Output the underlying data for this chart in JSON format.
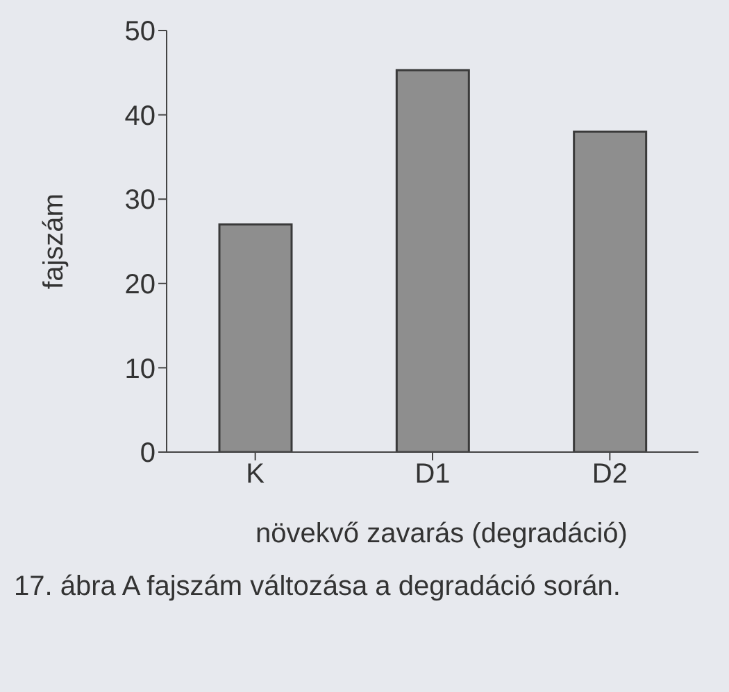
{
  "chart_data": {
    "type": "bar",
    "categories": [
      "K",
      "D1",
      "D2"
    ],
    "values": [
      27,
      45.3,
      38
    ],
    "color": "#8e8e8e",
    "xlabel": "növekvő zavarás (degradáció)",
    "ylabel": "fajszám",
    "ylim": [
      0,
      50
    ],
    "yticks": [
      0,
      10,
      20,
      30,
      40,
      50
    ],
    "grid": false,
    "annotations": [
      "17. ábra A fajszám változása a degradáció során."
    ]
  }
}
